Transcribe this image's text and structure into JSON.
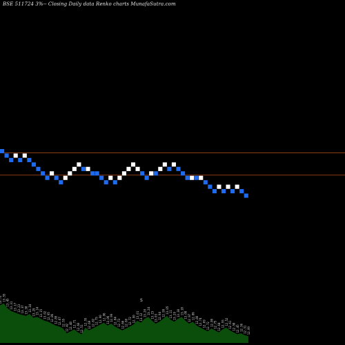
{
  "header": {
    "title": "BSE 511724  3%-- Closing Daily data  Renko  charts MunafaSutra.com"
  },
  "chart_data": {
    "type": "renko",
    "title": "BSE 511724  3%-- Closing Daily data  Renko  charts MunafaSutra.com",
    "brick_percent": 3,
    "colors": {
      "up": "#ffffff",
      "down": "#1f6bf0",
      "volume": "#0b4d0b",
      "level_line": "#8a3c12"
    },
    "level_lines": [
      0,
      -5
    ],
    "bricks": [
      {
        "dir": "down",
        "level": 0
      },
      {
        "dir": "down",
        "level": -1
      },
      {
        "dir": "down",
        "level": -2
      },
      {
        "dir": "up",
        "level": -1
      },
      {
        "dir": "down",
        "level": -2
      },
      {
        "dir": "up",
        "level": -1
      },
      {
        "dir": "down",
        "level": -2
      },
      {
        "dir": "down",
        "level": -3
      },
      {
        "dir": "down",
        "level": -4
      },
      {
        "dir": "down",
        "level": -5
      },
      {
        "dir": "down",
        "level": -6
      },
      {
        "dir": "up",
        "level": -5
      },
      {
        "dir": "down",
        "level": -6
      },
      {
        "dir": "down",
        "level": -7
      },
      {
        "dir": "up",
        "level": -6
      },
      {
        "dir": "up",
        "level": -5
      },
      {
        "dir": "up",
        "level": -4
      },
      {
        "dir": "up",
        "level": -3
      },
      {
        "dir": "down",
        "level": -4
      },
      {
        "dir": "up",
        "level": -4
      },
      {
        "dir": "down",
        "level": -5
      },
      {
        "dir": "down",
        "level": -5
      },
      {
        "dir": "down",
        "level": -6
      },
      {
        "dir": "down",
        "level": -7
      },
      {
        "dir": "up",
        "level": -6
      },
      {
        "dir": "down",
        "level": -7
      },
      {
        "dir": "up",
        "level": -6
      },
      {
        "dir": "up",
        "level": -5
      },
      {
        "dir": "up",
        "level": -4
      },
      {
        "dir": "up",
        "level": -3
      },
      {
        "dir": "up",
        "level": -4
      },
      {
        "dir": "down",
        "level": -5
      },
      {
        "dir": "down",
        "level": -6
      },
      {
        "dir": "up",
        "level": -5
      },
      {
        "dir": "down",
        "level": -5
      },
      {
        "dir": "up",
        "level": -4
      },
      {
        "dir": "up",
        "level": -3
      },
      {
        "dir": "down",
        "level": -4
      },
      {
        "dir": "up",
        "level": -3
      },
      {
        "dir": "down",
        "level": -4
      },
      {
        "dir": "down",
        "level": -5
      },
      {
        "dir": "down",
        "level": -6
      },
      {
        "dir": "up",
        "level": -6
      },
      {
        "dir": "down",
        "level": -6
      },
      {
        "dir": "up",
        "level": -6
      },
      {
        "dir": "down",
        "level": -7
      },
      {
        "dir": "down",
        "level": -8
      },
      {
        "dir": "down",
        "level": -9
      },
      {
        "dir": "up",
        "level": -8
      },
      {
        "dir": "down",
        "level": -9
      },
      {
        "dir": "up",
        "level": -8
      },
      {
        "dir": "down",
        "level": -9
      },
      {
        "dir": "up",
        "level": -8
      },
      {
        "dir": "down",
        "level": -9
      },
      {
        "dir": "down",
        "level": -10
      }
    ],
    "volume": [
      {
        "v": 0.78,
        "label": "13.72"
      },
      {
        "v": 0.82,
        "label": "13.55"
      },
      {
        "v": 0.72,
        "label": "13.45"
      },
      {
        "v": 0.66,
        "label": "13.31"
      },
      {
        "v": 0.63,
        "label": "13.17"
      },
      {
        "v": 0.6,
        "label": "13.23"
      },
      {
        "v": 0.58,
        "label": "13.37"
      },
      {
        "v": 0.56,
        "label": "13.38"
      },
      {
        "v": 0.6,
        "label": "13.34"
      },
      {
        "v": 0.52,
        "label": "13.29"
      },
      {
        "v": 0.54,
        "label": "13.14"
      },
      {
        "v": 0.5,
        "label": "13.15"
      },
      {
        "v": 0.46,
        "label": "13.02"
      },
      {
        "v": 0.44,
        "label": "12.95"
      },
      {
        "v": 0.4,
        "label": "12.86"
      },
      {
        "v": 0.36,
        "label": "12.80"
      },
      {
        "v": 0.34,
        "label": "12.67"
      },
      {
        "v": 0.3,
        "label": "12.55"
      },
      {
        "v": 0.2,
        "label": "12.42"
      },
      {
        "v": 0.24,
        "label": "12.48"
      },
      {
        "v": 0.28,
        "label": "12.71"
      },
      {
        "v": 0.22,
        "label": "12.60"
      },
      {
        "v": 0.18,
        "label": "12.51"
      },
      {
        "v": 0.32,
        "label": "12.55"
      },
      {
        "v": 0.26,
        "label": "12.69"
      },
      {
        "v": 0.3,
        "label": "12.82"
      },
      {
        "v": 0.34,
        "label": "12.75"
      },
      {
        "v": 0.38,
        "label": "12.90"
      },
      {
        "v": 0.42,
        "label": "12.96"
      },
      {
        "v": 0.36,
        "label": "13.06"
      },
      {
        "v": 0.4,
        "label": "12.99"
      },
      {
        "v": 0.34,
        "label": "12.84"
      },
      {
        "v": 0.3,
        "label": "12.73"
      },
      {
        "v": 0.26,
        "label": "12.66"
      },
      {
        "v": 0.3,
        "label": "12.60"
      },
      {
        "v": 0.34,
        "label": "12.72"
      },
      {
        "v": 0.38,
        "label": "12.90"
      },
      {
        "v": 0.46,
        "label": "13.01"
      },
      {
        "v": 0.42,
        "label": "13.12"
      },
      {
        "v": 0.5,
        "label": "13.20"
      },
      {
        "v": 0.54,
        "label": "13.24"
      },
      {
        "v": 0.46,
        "label": "13.15"
      },
      {
        "v": 0.4,
        "label": "13.03"
      },
      {
        "v": 0.44,
        "label": "12.94"
      },
      {
        "v": 0.5,
        "label": "12.99"
      },
      {
        "v": 0.56,
        "label": "13.05"
      },
      {
        "v": 0.48,
        "label": "13.11"
      },
      {
        "v": 0.44,
        "label": "13.29"
      },
      {
        "v": 0.5,
        "label": "13.30"
      },
      {
        "v": 0.54,
        "label": "13.18"
      },
      {
        "v": 0.46,
        "label": "13.08"
      },
      {
        "v": 0.4,
        "label": "12.97"
      },
      {
        "v": 0.44,
        "label": "12.86"
      },
      {
        "v": 0.36,
        "label": "12.80"
      },
      {
        "v": 0.32,
        "label": "12.74"
      },
      {
        "v": 0.28,
        "label": "12.69"
      },
      {
        "v": 0.24,
        "label": "12.72"
      },
      {
        "v": 0.3,
        "label": "12.80"
      },
      {
        "v": 0.26,
        "label": "12.75"
      },
      {
        "v": 0.22,
        "label": "12.64"
      },
      {
        "v": 0.28,
        "label": "12.55"
      },
      {
        "v": 0.32,
        "label": "12.52"
      },
      {
        "v": 0.26,
        "label": "12.61"
      },
      {
        "v": 0.22,
        "label": "12.58"
      },
      {
        "v": 0.18,
        "label": "12.45"
      },
      {
        "v": 0.2,
        "label": "12.36"
      },
      {
        "v": 0.16,
        "label": "12.31"
      },
      {
        "v": 0.14,
        "label": "12.09"
      }
    ],
    "annotation": "S"
  }
}
